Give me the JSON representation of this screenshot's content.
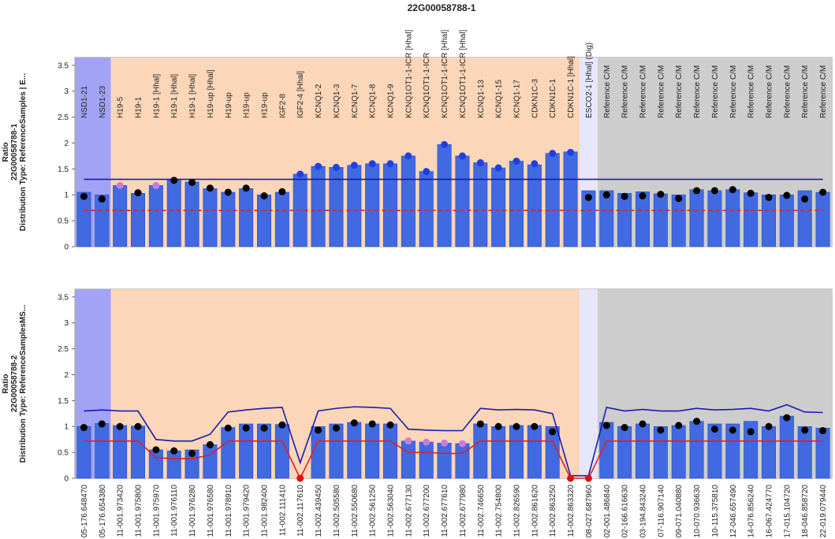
{
  "title": "22G00058788-1",
  "chart_data": [
    {
      "type": "bar",
      "ylabel": [
        "Ratio",
        "22G00058788-1",
        "Distribution  Type:  ReferenceSamples | E..."
      ],
      "label_position": "top",
      "categories": [
        "NSD1-21",
        "NSD1-23",
        "H19-5",
        "H19-1",
        "H19-1 [Hhal]",
        "H19-1 [Hhal]",
        "H19-1 [Hhal]",
        "H19-up [Hhal]",
        "H19-up",
        "H19-up",
        "H19-up",
        "IGF2-8",
        "IGF2-4 [Hhal]",
        "KCNQ1-2",
        "KCNQ1-3",
        "KCNQ1-7",
        "KCNQ1-8",
        "KCNQ1-9",
        "KCNQ1OT1-1-ICR [Hhal]",
        "KCNQ1OT1-1-ICR",
        "KCNQ1OT1-1-ICR [Hhal]",
        "KCNQ1OT1-1-ICR [Hhal]",
        "KCNQ1-13",
        "KCNQ1-15",
        "KCNQ1-17",
        "CDKN1C-3",
        "CDKN1C-1",
        "CDKN1C-1 [Hhal]",
        "ESCO2-1 [Hhal] (Dig)",
        "Reference C/M",
        "Reference C/M",
        "Reference C/M",
        "Reference C/M",
        "Reference C/M",
        "Reference C/M",
        "Reference C/M",
        "Reference C/M",
        "Reference C/M",
        "Reference C/M",
        "Reference C/M",
        "Reference C/M",
        "Reference C/M"
      ],
      "values": [
        1.05,
        1.0,
        1.18,
        1.03,
        1.18,
        1.28,
        1.25,
        1.12,
        1.05,
        1.12,
        1.0,
        1.05,
        1.4,
        1.55,
        1.53,
        1.57,
        1.6,
        1.6,
        1.75,
        1.45,
        1.97,
        1.75,
        1.62,
        1.52,
        1.65,
        1.58,
        1.8,
        1.83,
        1.08,
        1.08,
        1.03,
        1.06,
        1.02,
        1.0,
        1.1,
        1.08,
        1.1,
        1.04,
        1.0,
        1.0,
        1.08,
        1.05
      ],
      "points": [
        0.97,
        0.92,
        1.18,
        1.04,
        1.18,
        1.28,
        1.24,
        1.13,
        1.05,
        1.13,
        0.98,
        1.06,
        1.4,
        1.55,
        1.53,
        1.57,
        1.6,
        1.6,
        1.75,
        1.45,
        1.97,
        1.75,
        1.62,
        1.52,
        1.65,
        1.6,
        1.8,
        1.82,
        0.95,
        1.0,
        0.97,
        0.98,
        1.01,
        0.93,
        1.08,
        1.08,
        1.1,
        1.03,
        0.95,
        0.99,
        0.92,
        1.05
      ],
      "point_colors": [
        "#000",
        "#000",
        "#c77ddb",
        "#000",
        "#c77ddb",
        "#000",
        "#000",
        "#000",
        "#000",
        "#000",
        "#000",
        "#000",
        "#1f3fe0",
        "#1f3fe0",
        "#1f3fe0",
        "#1f3fe0",
        "#1f3fe0",
        "#1f3fe0",
        "#1f3fe0",
        "#1f3fe0",
        "#1f3fe0",
        "#1f3fe0",
        "#1f3fe0",
        "#1f3fe0",
        "#1f3fe0",
        "#1f3fe0",
        "#1f3fe0",
        "#1f3fe0",
        "#000",
        "#000",
        "#000",
        "#000",
        "#000",
        "#000",
        "#000",
        "#000",
        "#000",
        "#000",
        "#000",
        "#000",
        "#000",
        "#000"
      ],
      "upper_line": [
        1.3,
        1.3,
        1.3,
        1.3,
        1.3,
        1.3,
        1.3,
        1.3,
        1.3,
        1.3,
        1.3,
        1.3,
        1.3,
        1.3,
        1.3,
        1.3,
        1.3,
        1.3,
        1.3,
        1.3,
        1.3,
        1.3,
        1.3,
        1.3,
        1.3,
        1.3,
        1.3,
        1.3,
        1.3,
        1.3,
        1.3,
        1.3,
        1.3,
        1.3,
        1.3,
        1.3,
        1.3,
        1.3,
        1.3,
        1.3,
        1.3,
        1.3
      ],
      "lower_line": [
        0.7,
        0.7,
        0.7,
        0.7,
        0.7,
        0.7,
        0.7,
        0.7,
        0.7,
        0.7,
        0.7,
        0.7,
        0.7,
        0.7,
        0.7,
        0.7,
        0.7,
        0.7,
        0.7,
        0.7,
        0.7,
        0.7,
        0.7,
        0.7,
        0.7,
        0.7,
        0.7,
        0.7,
        0.7,
        0.7,
        0.7,
        0.7,
        0.7,
        0.7,
        0.7,
        0.7,
        0.7,
        0.7,
        0.7,
        0.7,
        0.7,
        0.7
      ],
      "color": "#4169e1",
      "upper_color": "#1a1ab0",
      "lower_color": "#e02020",
      "lower_dashed": true,
      "regions": [
        {
          "start": 0,
          "end": 1,
          "color": "#a3a3f5"
        },
        {
          "start": 2,
          "end": 27,
          "color": "#fbd6b8"
        },
        {
          "start": 28,
          "end": 28,
          "color": "#e8e6fb"
        },
        {
          "start": 29,
          "end": 41,
          "color": "#cdcdcd"
        }
      ],
      "ylim": [
        0,
        3.65
      ],
      "yticks": [
        0,
        0.5,
        1,
        1.5,
        2,
        2.5,
        3,
        3.5
      ]
    },
    {
      "type": "bar",
      "ylabel": [
        "Ratio",
        "22G00058788-2",
        "Distribution  Type:  ReferenceSamplesMS..."
      ],
      "label_position": "bottom",
      "categories": [
        "05-176.648470",
        "05-176.654380",
        "11-001.973420",
        "11-001.975800",
        "11-001.975970",
        "11-001.976110",
        "11-001.976280",
        "11-001.976580",
        "11-001.978910",
        "11-001.979420",
        "11-001.982400",
        "11-002.111410",
        "11-002.117610",
        "11-002.439450",
        "11-002.505580",
        "11-002.550680",
        "11-002.561250",
        "11-002.563040",
        "11-002.677130",
        "11-002.677200",
        "11-002.677610",
        "11-002.677980",
        "11-002.746650",
        "11-002.754800",
        "11-002.826590",
        "11-002.861620",
        "11-002.863250",
        "11-002.863320",
        "08-027.687960",
        "02-001.486840",
        "02-166.616630",
        "03-194.843240",
        "07-116.907140",
        "09-071.040880",
        "10-070.936630",
        "10-115.375810",
        "12-046.657490",
        "14-076.856240",
        "16-067.424770",
        "17-015.104720",
        "18-046.858720",
        "22-019.079440"
      ],
      "values": [
        1.0,
        1.06,
        1.02,
        1.01,
        0.55,
        0.53,
        0.55,
        0.65,
        0.98,
        1.05,
        1.05,
        1.04,
        0,
        1.0,
        1.05,
        1.08,
        1.05,
        1.05,
        0.72,
        0.7,
        0.68,
        0.67,
        1.05,
        1.0,
        1.02,
        1.02,
        1.0,
        0,
        0,
        1.08,
        1.0,
        1.05,
        1.0,
        1.02,
        1.1,
        1.05,
        1.05,
        1.1,
        1.0,
        1.2,
        1.0,
        0.97
      ],
      "points": [
        0.98,
        1.05,
        1.0,
        1.0,
        0.55,
        0.53,
        0.48,
        0.65,
        0.97,
        0.97,
        0.97,
        1.03,
        0,
        0.93,
        0.97,
        1.07,
        1.05,
        1.03,
        0.72,
        0.7,
        0.68,
        0.67,
        1.05,
        1.0,
        1.0,
        1.0,
        0.9,
        0,
        0,
        1.02,
        0.98,
        1.05,
        0.93,
        1.02,
        1.1,
        0.95,
        0.93,
        0.9,
        1.0,
        1.17,
        0.93,
        0.92
      ],
      "point_colors": [
        "#000",
        "#000",
        "#000",
        "#000",
        "#000",
        "#000",
        "#000",
        "#000",
        "#000",
        "#000",
        "#000",
        "#000",
        "#e01010",
        "#000",
        "#000",
        "#000",
        "#000",
        "#000",
        "#c77ddb",
        "#c77ddb",
        "#c77ddb",
        "#c77ddb",
        "#000",
        "#000",
        "#000",
        "#000",
        "#000",
        "#e01010",
        "#e01010",
        "#000",
        "#000",
        "#000",
        "#000",
        "#000",
        "#000",
        "#000",
        "#000",
        "#000",
        "#000",
        "#000",
        "#000",
        "#000"
      ],
      "upper_line": [
        1.3,
        1.32,
        1.3,
        1.3,
        0.75,
        0.72,
        0.72,
        0.85,
        1.28,
        1.32,
        1.35,
        1.37,
        0.3,
        1.3,
        1.35,
        1.38,
        1.37,
        1.35,
        0.95,
        0.93,
        0.92,
        0.92,
        1.35,
        1.32,
        1.33,
        1.32,
        1.25,
        0.05,
        0.05,
        1.37,
        1.3,
        1.33,
        1.3,
        1.3,
        1.35,
        1.32,
        1.33,
        1.35,
        1.3,
        1.42,
        1.28,
        1.27
      ],
      "lower_line": [
        0.72,
        0.72,
        0.72,
        0.72,
        0.4,
        0.38,
        0.38,
        0.45,
        0.72,
        0.72,
        0.72,
        0.72,
        0,
        0.72,
        0.72,
        0.72,
        0.72,
        0.72,
        0.5,
        0.5,
        0.48,
        0.48,
        0.72,
        0.72,
        0.72,
        0.72,
        0.72,
        0,
        0,
        0.72,
        0.72,
        0.72,
        0.72,
        0.72,
        0.72,
        0.72,
        0.72,
        0.72,
        0.72,
        0.72,
        0.72,
        0.72
      ],
      "color": "#4169e1",
      "upper_color": "#1a1ab0",
      "lower_color": "#e02020",
      "lower_dashed": false,
      "regions": [
        {
          "start": 0,
          "end": 1,
          "color": "#a3a3f5"
        },
        {
          "start": 2,
          "end": 27,
          "color": "#fbd6b8"
        },
        {
          "start": 28,
          "end": 28,
          "color": "#e8e6fb"
        },
        {
          "start": 29,
          "end": 41,
          "color": "#cdcdcd"
        }
      ],
      "ylim": [
        0,
        3.65
      ],
      "yticks": [
        0,
        0.5,
        1,
        1.5,
        2,
        2.5,
        3,
        3.5
      ]
    }
  ]
}
